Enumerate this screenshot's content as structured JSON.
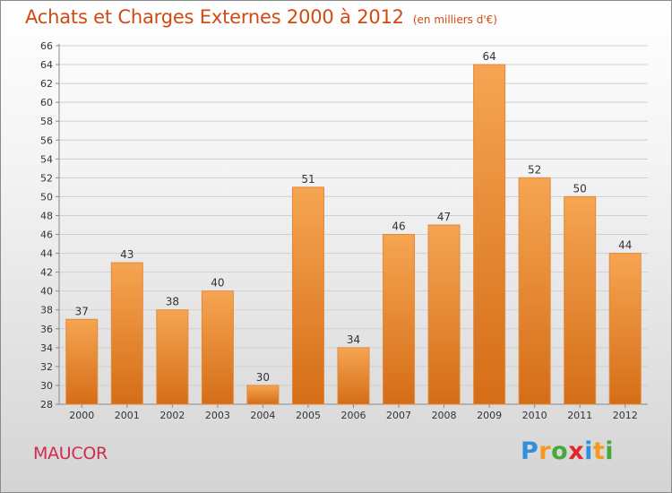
{
  "header": {
    "title": "Achats et Charges Externes 2000 à 2012",
    "subtitle": "(en milliers d'€)"
  },
  "footer": {
    "commune": "MAUCOR",
    "brand": "Proxiti",
    "brand_letters": [
      {
        "ch": "P",
        "color": "#2f8fd8"
      },
      {
        "ch": "r",
        "color": "#f39a1e"
      },
      {
        "ch": "o",
        "color": "#46a83c"
      },
      {
        "ch": "x",
        "color": "#e2262b"
      },
      {
        "ch": "i",
        "color": "#2f8fd8"
      },
      {
        "ch": "t",
        "color": "#f39a1e"
      },
      {
        "ch": "i",
        "color": "#46a83c"
      }
    ]
  },
  "colors": {
    "bar_top": "#f6a552",
    "bar_bottom": "#d56d17",
    "bar_edge": "#e08a3c",
    "grid": "#cfcfcf",
    "text": "#333333"
  },
  "chart_data": {
    "type": "bar",
    "categories": [
      "2000",
      "2001",
      "2002",
      "2003",
      "2004",
      "2005",
      "2006",
      "2007",
      "2008",
      "2009",
      "2010",
      "2011",
      "2012"
    ],
    "values": [
      37,
      43,
      38,
      40,
      30,
      51,
      34,
      46,
      47,
      64,
      52,
      50,
      44
    ],
    "data_labels": [
      "37",
      "43",
      "38",
      "40",
      "30",
      "51",
      "34",
      "46",
      "47",
      "64",
      "52",
      "50",
      "44"
    ],
    "yticks": [
      "28",
      "30",
      "32",
      "34",
      "36",
      "38",
      "40",
      "42",
      "44",
      "46",
      "48",
      "50",
      "52",
      "54",
      "56",
      "58",
      "60",
      "62",
      "64",
      "66"
    ],
    "ylim": [
      28,
      66
    ],
    "grid": true,
    "legend": "none"
  }
}
